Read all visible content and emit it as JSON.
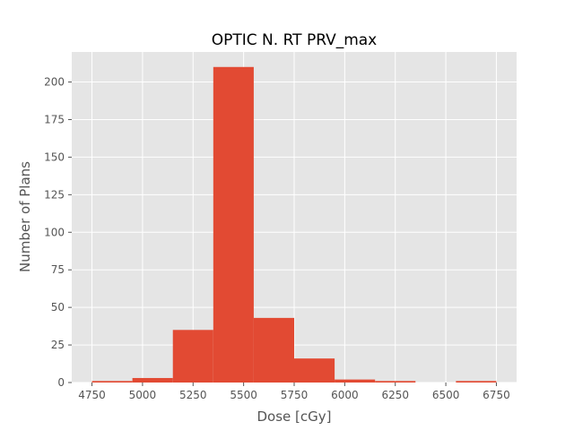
{
  "chart_data": {
    "type": "bar",
    "subtype": "histogram",
    "title": "OPTIC N. RT PRV_max",
    "xlabel": "Dose [cGy]",
    "ylabel": "Number of Plans",
    "xlim": [
      4750,
      6750
    ],
    "ylim": [
      0,
      220
    ],
    "xticks": [
      4750,
      5000,
      5250,
      5500,
      5750,
      6000,
      6250,
      6500,
      6750
    ],
    "yticks": [
      0,
      25,
      50,
      75,
      100,
      125,
      150,
      175,
      200
    ],
    "bins": [
      {
        "x0": 4750,
        "x1": 4950,
        "count": 1
      },
      {
        "x0": 4950,
        "x1": 5150,
        "count": 3
      },
      {
        "x0": 5150,
        "x1": 5350,
        "count": 35
      },
      {
        "x0": 5350,
        "x1": 5550,
        "count": 210
      },
      {
        "x0": 5550,
        "x1": 5750,
        "count": 43
      },
      {
        "x0": 5750,
        "x1": 5950,
        "count": 16
      },
      {
        "x0": 5950,
        "x1": 6150,
        "count": 2
      },
      {
        "x0": 6150,
        "x1": 6350,
        "count": 1
      },
      {
        "x0": 6350,
        "x1": 6550,
        "count": 0
      },
      {
        "x0": 6550,
        "x1": 6750,
        "count": 1
      }
    ],
    "grid": true,
    "colors": {
      "bar": "#E24A33",
      "background": "#E5E5E5",
      "grid": "#FFFFFF",
      "text": "#555555"
    }
  }
}
